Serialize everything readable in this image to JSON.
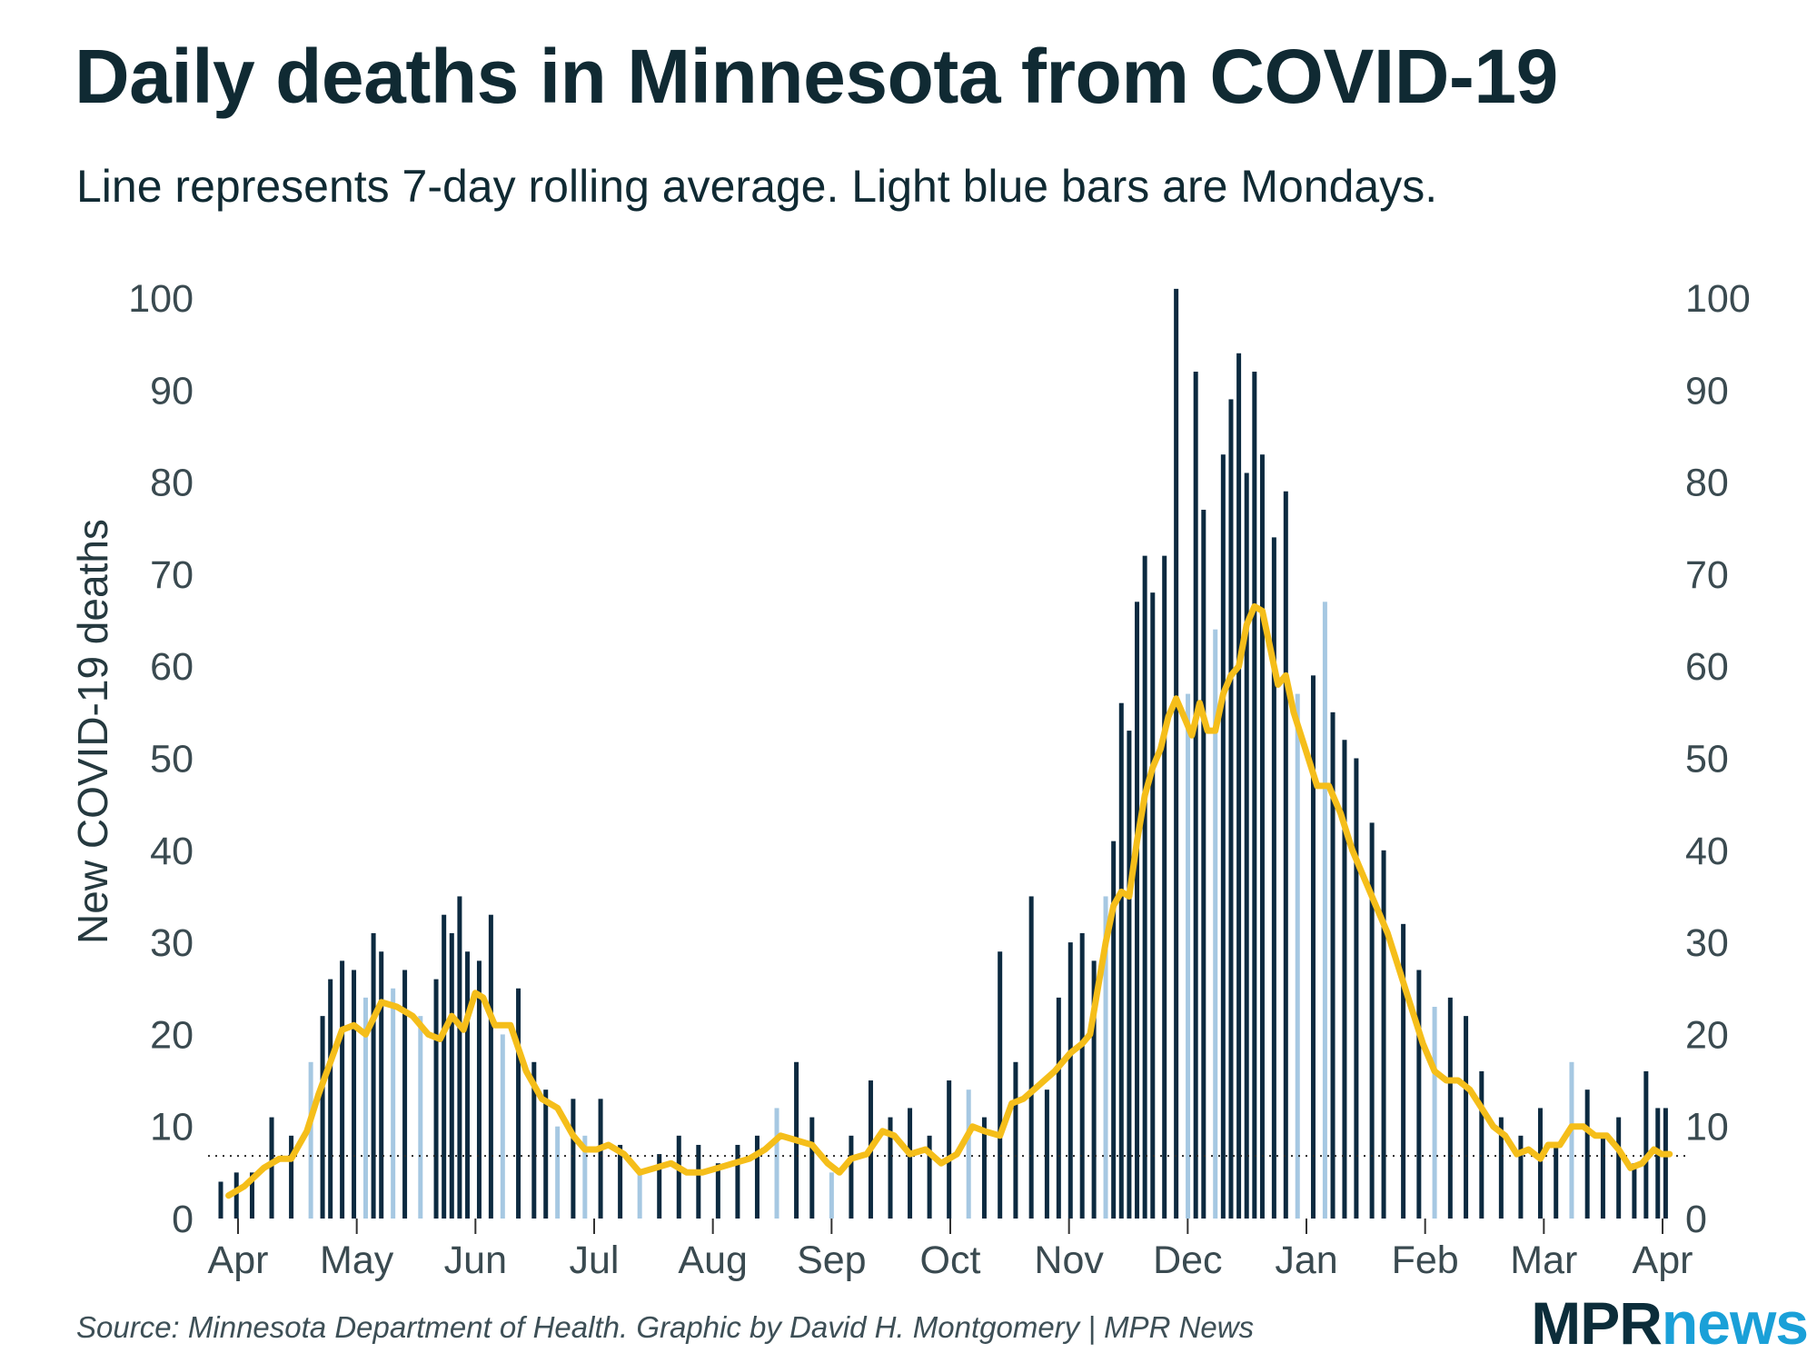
{
  "chart_data": {
    "type": "bar",
    "title": "Daily deaths in Minnesota from COVID-19",
    "subtitle": "Line represents 7-day rolling average. Light blue bars are Mondays.",
    "ylabel": "New COVID-19 deaths",
    "ylim": [
      0,
      100
    ],
    "y_ticks": [
      0,
      10,
      20,
      30,
      40,
      50,
      60,
      70,
      80,
      90,
      100
    ],
    "x_ticks": [
      "Apr",
      "May",
      "Jun",
      "Jul",
      "Aug",
      "Sep",
      "Oct",
      "Nov",
      "Dec",
      "Jan",
      "Feb",
      "Mar",
      "Apr"
    ],
    "x_range": [
      "2020-03-28",
      "2021-04-03"
    ],
    "reference_line": {
      "value": 6.8,
      "style": "dotted"
    },
    "colors": {
      "bar": "#0c2a40",
      "monday_bar": "#a6c8e2",
      "line": "#f5be1a",
      "text": "#102a33"
    },
    "series": [
      {
        "kind": "bars",
        "points": [
          {
            "x": "2020-03-28",
            "y": 4
          },
          {
            "x": "2020-04-01",
            "y": 5
          },
          {
            "x": "2020-04-05",
            "y": 5
          },
          {
            "x": "2020-04-10",
            "y": 11
          },
          {
            "x": "2020-04-15",
            "y": 9
          },
          {
            "x": "2020-04-20",
            "y": 17
          },
          {
            "x": "2020-04-23",
            "y": 22
          },
          {
            "x": "2020-04-25",
            "y": 26
          },
          {
            "x": "2020-04-28",
            "y": 28
          },
          {
            "x": "2020-05-01",
            "y": 27
          },
          {
            "x": "2020-05-04",
            "y": 24
          },
          {
            "x": "2020-05-06",
            "y": 31
          },
          {
            "x": "2020-05-08",
            "y": 29
          },
          {
            "x": "2020-05-11",
            "y": 25
          },
          {
            "x": "2020-05-14",
            "y": 27
          },
          {
            "x": "2020-05-18",
            "y": 22
          },
          {
            "x": "2020-05-22",
            "y": 26
          },
          {
            "x": "2020-05-24",
            "y": 33
          },
          {
            "x": "2020-05-26",
            "y": 31
          },
          {
            "x": "2020-05-28",
            "y": 35
          },
          {
            "x": "2020-05-30",
            "y": 29
          },
          {
            "x": "2020-06-02",
            "y": 28
          },
          {
            "x": "2020-06-05",
            "y": 33
          },
          {
            "x": "2020-06-08",
            "y": 20
          },
          {
            "x": "2020-06-12",
            "y": 25
          },
          {
            "x": "2020-06-16",
            "y": 17
          },
          {
            "x": "2020-06-19",
            "y": 14
          },
          {
            "x": "2020-06-22",
            "y": 10
          },
          {
            "x": "2020-06-26",
            "y": 13
          },
          {
            "x": "2020-06-29",
            "y": 9
          },
          {
            "x": "2020-07-03",
            "y": 13
          },
          {
            "x": "2020-07-08",
            "y": 8
          },
          {
            "x": "2020-07-13",
            "y": 5
          },
          {
            "x": "2020-07-18",
            "y": 7
          },
          {
            "x": "2020-07-23",
            "y": 9
          },
          {
            "x": "2020-07-28",
            "y": 8
          },
          {
            "x": "2020-08-02",
            "y": 6
          },
          {
            "x": "2020-08-07",
            "y": 8
          },
          {
            "x": "2020-08-12",
            "y": 9
          },
          {
            "x": "2020-08-17",
            "y": 12
          },
          {
            "x": "2020-08-22",
            "y": 17
          },
          {
            "x": "2020-08-26",
            "y": 11
          },
          {
            "x": "2020-08-31",
            "y": 5
          },
          {
            "x": "2020-09-05",
            "y": 9
          },
          {
            "x": "2020-09-10",
            "y": 15
          },
          {
            "x": "2020-09-15",
            "y": 11
          },
          {
            "x": "2020-09-20",
            "y": 12
          },
          {
            "x": "2020-09-25",
            "y": 9
          },
          {
            "x": "2020-09-30",
            "y": 15
          },
          {
            "x": "2020-10-05",
            "y": 14
          },
          {
            "x": "2020-10-09",
            "y": 11
          },
          {
            "x": "2020-10-13",
            "y": 29
          },
          {
            "x": "2020-10-17",
            "y": 17
          },
          {
            "x": "2020-10-21",
            "y": 35
          },
          {
            "x": "2020-10-25",
            "y": 14
          },
          {
            "x": "2020-10-28",
            "y": 24
          },
          {
            "x": "2020-10-31",
            "y": 30
          },
          {
            "x": "2020-11-03",
            "y": 31
          },
          {
            "x": "2020-11-06",
            "y": 28
          },
          {
            "x": "2020-11-09",
            "y": 35
          },
          {
            "x": "2020-11-11",
            "y": 41
          },
          {
            "x": "2020-11-13",
            "y": 56
          },
          {
            "x": "2020-11-15",
            "y": 53
          },
          {
            "x": "2020-11-17",
            "y": 67
          },
          {
            "x": "2020-11-19",
            "y": 72
          },
          {
            "x": "2020-11-21",
            "y": 68
          },
          {
            "x": "2020-11-24",
            "y": 72
          },
          {
            "x": "2020-11-27",
            "y": 101
          },
          {
            "x": "2020-11-30",
            "y": 57
          },
          {
            "x": "2020-12-02",
            "y": 92
          },
          {
            "x": "2020-12-04",
            "y": 77
          },
          {
            "x": "2020-12-07",
            "y": 64
          },
          {
            "x": "2020-12-09",
            "y": 83
          },
          {
            "x": "2020-12-11",
            "y": 89
          },
          {
            "x": "2020-12-13",
            "y": 94
          },
          {
            "x": "2020-12-15",
            "y": 81
          },
          {
            "x": "2020-12-17",
            "y": 92
          },
          {
            "x": "2020-12-19",
            "y": 83
          },
          {
            "x": "2020-12-22",
            "y": 74
          },
          {
            "x": "2020-12-25",
            "y": 79
          },
          {
            "x": "2020-12-28",
            "y": 57
          },
          {
            "x": "2021-01-01",
            "y": 59
          },
          {
            "x": "2021-01-04",
            "y": 67
          },
          {
            "x": "2021-01-06",
            "y": 55
          },
          {
            "x": "2021-01-09",
            "y": 52
          },
          {
            "x": "2021-01-12",
            "y": 50
          },
          {
            "x": "2021-01-16",
            "y": 43
          },
          {
            "x": "2021-01-19",
            "y": 40
          },
          {
            "x": "2021-01-24",
            "y": 32
          },
          {
            "x": "2021-01-28",
            "y": 27
          },
          {
            "x": "2021-02-01",
            "y": 23
          },
          {
            "x": "2021-02-05",
            "y": 24
          },
          {
            "x": "2021-02-09",
            "y": 22
          },
          {
            "x": "2021-02-13",
            "y": 16
          },
          {
            "x": "2021-02-18",
            "y": 11
          },
          {
            "x": "2021-02-23",
            "y": 9
          },
          {
            "x": "2021-02-28",
            "y": 12
          },
          {
            "x": "2021-03-04",
            "y": 8
          },
          {
            "x": "2021-03-08",
            "y": 17
          },
          {
            "x": "2021-03-12",
            "y": 14
          },
          {
            "x": "2021-03-16",
            "y": 9
          },
          {
            "x": "2021-03-20",
            "y": 11
          },
          {
            "x": "2021-03-24",
            "y": 6
          },
          {
            "x": "2021-03-27",
            "y": 16
          },
          {
            "x": "2021-03-30",
            "y": 12
          },
          {
            "x": "2021-04-01",
            "y": 12
          }
        ]
      },
      {
        "kind": "line",
        "points": [
          {
            "x": "2020-03-30",
            "y": 2.5
          },
          {
            "x": "2020-04-03",
            "y": 3.5
          },
          {
            "x": "2020-04-08",
            "y": 5.5
          },
          {
            "x": "2020-04-12",
            "y": 6.5
          },
          {
            "x": "2020-04-15",
            "y": 6.5
          },
          {
            "x": "2020-04-19",
            "y": 9.5
          },
          {
            "x": "2020-04-22",
            "y": 13.5
          },
          {
            "x": "2020-04-25",
            "y": 17
          },
          {
            "x": "2020-04-28",
            "y": 20.5
          },
          {
            "x": "2020-05-01",
            "y": 21
          },
          {
            "x": "2020-05-04",
            "y": 20
          },
          {
            "x": "2020-05-08",
            "y": 23.5
          },
          {
            "x": "2020-05-12",
            "y": 23
          },
          {
            "x": "2020-05-16",
            "y": 22
          },
          {
            "x": "2020-05-20",
            "y": 20
          },
          {
            "x": "2020-05-23",
            "y": 19.5
          },
          {
            "x": "2020-05-26",
            "y": 22
          },
          {
            "x": "2020-05-29",
            "y": 20.5
          },
          {
            "x": "2020-06-01",
            "y": 24.5
          },
          {
            "x": "2020-06-03",
            "y": 24
          },
          {
            "x": "2020-06-06",
            "y": 21
          },
          {
            "x": "2020-06-10",
            "y": 21
          },
          {
            "x": "2020-06-14",
            "y": 16
          },
          {
            "x": "2020-06-18",
            "y": 13
          },
          {
            "x": "2020-06-22",
            "y": 12
          },
          {
            "x": "2020-06-26",
            "y": 9
          },
          {
            "x": "2020-06-29",
            "y": 7.5
          },
          {
            "x": "2020-07-02",
            "y": 7.5
          },
          {
            "x": "2020-07-05",
            "y": 8
          },
          {
            "x": "2020-07-09",
            "y": 7
          },
          {
            "x": "2020-07-13",
            "y": 5
          },
          {
            "x": "2020-07-17",
            "y": 5.5
          },
          {
            "x": "2020-07-21",
            "y": 6
          },
          {
            "x": "2020-07-25",
            "y": 5
          },
          {
            "x": "2020-07-29",
            "y": 5
          },
          {
            "x": "2020-08-02",
            "y": 5.5
          },
          {
            "x": "2020-08-06",
            "y": 6
          },
          {
            "x": "2020-08-10",
            "y": 6.5
          },
          {
            "x": "2020-08-14",
            "y": 7.5
          },
          {
            "x": "2020-08-18",
            "y": 9
          },
          {
            "x": "2020-08-22",
            "y": 8.5
          },
          {
            "x": "2020-08-26",
            "y": 8
          },
          {
            "x": "2020-08-30",
            "y": 6
          },
          {
            "x": "2020-09-02",
            "y": 5
          },
          {
            "x": "2020-09-05",
            "y": 6.5
          },
          {
            "x": "2020-09-09",
            "y": 7
          },
          {
            "x": "2020-09-13",
            "y": 9.5
          },
          {
            "x": "2020-09-16",
            "y": 9
          },
          {
            "x": "2020-09-20",
            "y": 7
          },
          {
            "x": "2020-09-24",
            "y": 7.5
          },
          {
            "x": "2020-09-28",
            "y": 6
          },
          {
            "x": "2020-10-02",
            "y": 7
          },
          {
            "x": "2020-10-06",
            "y": 10
          },
          {
            "x": "2020-10-09",
            "y": 9.5
          },
          {
            "x": "2020-10-13",
            "y": 9
          },
          {
            "x": "2020-10-16",
            "y": 12.5
          },
          {
            "x": "2020-10-19",
            "y": 13
          },
          {
            "x": "2020-10-23",
            "y": 14.5
          },
          {
            "x": "2020-10-27",
            "y": 16
          },
          {
            "x": "2020-10-31",
            "y": 18
          },
          {
            "x": "2020-11-03",
            "y": 19
          },
          {
            "x": "2020-11-05",
            "y": 20
          },
          {
            "x": "2020-11-07",
            "y": 25
          },
          {
            "x": "2020-11-09",
            "y": 30
          },
          {
            "x": "2020-11-11",
            "y": 34
          },
          {
            "x": "2020-11-13",
            "y": 35.5
          },
          {
            "x": "2020-11-15",
            "y": 35
          },
          {
            "x": "2020-11-17",
            "y": 41
          },
          {
            "x": "2020-11-19",
            "y": 46
          },
          {
            "x": "2020-11-21",
            "y": 49
          },
          {
            "x": "2020-11-23",
            "y": 51
          },
          {
            "x": "2020-11-25",
            "y": 54.5
          },
          {
            "x": "2020-11-27",
            "y": 56.5
          },
          {
            "x": "2020-11-29",
            "y": 54.5
          },
          {
            "x": "2020-12-01",
            "y": 52.5
          },
          {
            "x": "2020-12-03",
            "y": 56
          },
          {
            "x": "2020-12-05",
            "y": 53
          },
          {
            "x": "2020-12-07",
            "y": 53
          },
          {
            "x": "2020-12-09",
            "y": 57
          },
          {
            "x": "2020-12-11",
            "y": 59
          },
          {
            "x": "2020-12-13",
            "y": 60
          },
          {
            "x": "2020-12-15",
            "y": 64.5
          },
          {
            "x": "2020-12-17",
            "y": 66.5
          },
          {
            "x": "2020-12-19",
            "y": 66
          },
          {
            "x": "2020-12-21",
            "y": 62
          },
          {
            "x": "2020-12-23",
            "y": 58
          },
          {
            "x": "2020-12-25",
            "y": 59
          },
          {
            "x": "2020-12-27",
            "y": 55
          },
          {
            "x": "2020-12-30",
            "y": 51
          },
          {
            "x": "2021-01-02",
            "y": 47
          },
          {
            "x": "2021-01-05",
            "y": 47
          },
          {
            "x": "2021-01-08",
            "y": 44
          },
          {
            "x": "2021-01-11",
            "y": 40
          },
          {
            "x": "2021-01-14",
            "y": 37
          },
          {
            "x": "2021-01-17",
            "y": 34
          },
          {
            "x": "2021-01-20",
            "y": 31
          },
          {
            "x": "2021-01-23",
            "y": 27
          },
          {
            "x": "2021-01-26",
            "y": 23
          },
          {
            "x": "2021-01-29",
            "y": 19
          },
          {
            "x": "2021-02-01",
            "y": 16
          },
          {
            "x": "2021-02-04",
            "y": 15
          },
          {
            "x": "2021-02-07",
            "y": 15
          },
          {
            "x": "2021-02-10",
            "y": 14
          },
          {
            "x": "2021-02-13",
            "y": 12
          },
          {
            "x": "2021-02-16",
            "y": 10
          },
          {
            "x": "2021-02-19",
            "y": 9
          },
          {
            "x": "2021-02-22",
            "y": 7
          },
          {
            "x": "2021-02-25",
            "y": 7.5
          },
          {
            "x": "2021-02-28",
            "y": 6.5
          },
          {
            "x": "2021-03-02",
            "y": 8
          },
          {
            "x": "2021-03-05",
            "y": 8
          },
          {
            "x": "2021-03-08",
            "y": 10
          },
          {
            "x": "2021-03-11",
            "y": 10
          },
          {
            "x": "2021-03-14",
            "y": 9
          },
          {
            "x": "2021-03-17",
            "y": 9
          },
          {
            "x": "2021-03-20",
            "y": 7.5
          },
          {
            "x": "2021-03-23",
            "y": 5.5
          },
          {
            "x": "2021-03-26",
            "y": 6
          },
          {
            "x": "2021-03-29",
            "y": 7.5
          },
          {
            "x": "2021-03-31",
            "y": 7
          },
          {
            "x": "2021-04-02",
            "y": 7
          }
        ]
      }
    ]
  },
  "source": "Source: Minnesota Department of Health. Graphic by David H. Montgomery | MPR News",
  "logo": {
    "left": "MPR",
    "right": "news"
  }
}
